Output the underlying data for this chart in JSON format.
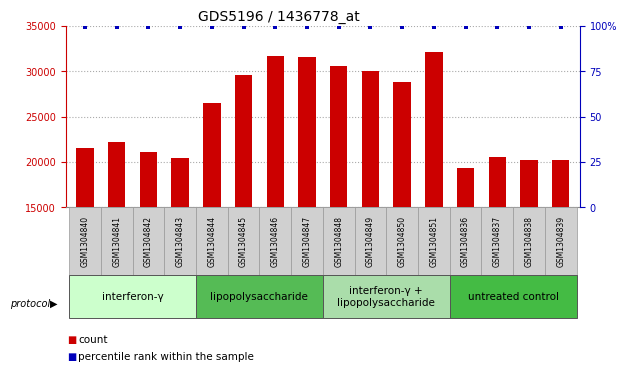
{
  "title": "GDS5196 / 1436778_at",
  "samples": [
    "GSM1304840",
    "GSM1304841",
    "GSM1304842",
    "GSM1304843",
    "GSM1304844",
    "GSM1304845",
    "GSM1304846",
    "GSM1304847",
    "GSM1304848",
    "GSM1304849",
    "GSM1304850",
    "GSM1304851",
    "GSM1304836",
    "GSM1304837",
    "GSM1304838",
    "GSM1304839"
  ],
  "counts": [
    21500,
    22200,
    21100,
    20500,
    26500,
    29600,
    31700,
    31600,
    30600,
    30000,
    28800,
    32100,
    19300,
    20600,
    20200,
    20200
  ],
  "groups": [
    {
      "label": "interferon-γ",
      "start": 0,
      "end": 4,
      "color": "#ccffcc"
    },
    {
      "label": "lipopolysaccharide",
      "start": 4,
      "end": 8,
      "color": "#66dd66"
    },
    {
      "label": "interferon-γ +\nlipopolysaccharide",
      "start": 8,
      "end": 12,
      "color": "#aaddaa"
    },
    {
      "label": "untreated control",
      "start": 12,
      "end": 16,
      "color": "#44cc44"
    }
  ],
  "bar_color": "#cc0000",
  "dot_color": "#0000bb",
  "ylim_left": [
    15000,
    35000
  ],
  "ylim_right": [
    0,
    100
  ],
  "yticks_left": [
    15000,
    20000,
    25000,
    30000,
    35000
  ],
  "yticks_right": [
    0,
    25,
    50,
    75,
    100
  ],
  "ytick_labels_right": [
    "0",
    "25",
    "50",
    "75",
    "100%"
  ],
  "grid_color": "#aaaaaa",
  "left_axis_color": "#cc0000",
  "right_axis_color": "#0000bb",
  "legend_count_label": "count",
  "legend_percentile_label": "percentile rank within the sample",
  "protocol_label": "protocol",
  "title_fontsize": 10,
  "tick_fontsize": 7,
  "label_fontsize": 5.5,
  "legend_fontsize": 7.5,
  "group_fontsize": 7.5
}
